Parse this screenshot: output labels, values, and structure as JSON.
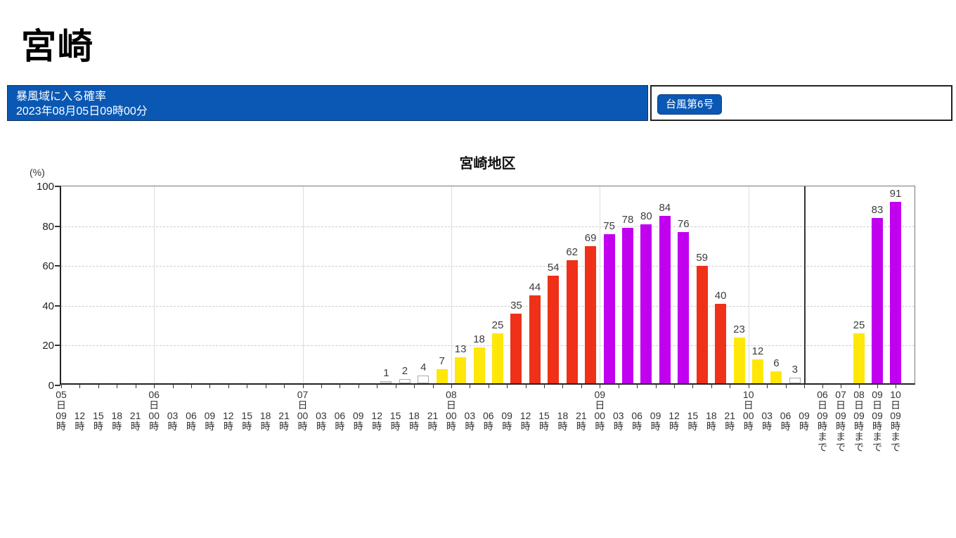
{
  "page": {
    "title": "宮崎"
  },
  "header": {
    "label": "暴風域に入る確率",
    "issued": "2023年08月05日09時00分",
    "typhoon_button": "台風第6号",
    "bg_color": "#0a58b4"
  },
  "chart_data": {
    "type": "bar",
    "title": "宮崎地区",
    "ylabel": "(%)",
    "ylim": [
      0,
      100
    ],
    "yticks": [
      0,
      20,
      40,
      60,
      80,
      100
    ],
    "grid": {
      "horizontal_dashed_at": [
        20,
        40,
        60,
        80
      ],
      "vertical_day_lines_at_tick_indices": [
        5,
        13,
        21,
        29,
        37
      ]
    },
    "legend_position": "none",
    "time_ticks": [
      "05日09時",
      "12時",
      "15時",
      "18時",
      "21時",
      "06日00時",
      "03時",
      "06時",
      "09時",
      "12時",
      "15時",
      "18時",
      "21時",
      "07日00時",
      "03時",
      "06時",
      "09時",
      "12時",
      "15時",
      "18時",
      "21時",
      "08日00時",
      "03時",
      "06時",
      "09時",
      "12時",
      "15時",
      "18時",
      "21時",
      "09日00時",
      "03時",
      "06時",
      "09時",
      "12時",
      "15時",
      "18時",
      "21時",
      "10日00時",
      "03時",
      "06時",
      "09時"
    ],
    "bin_values": [
      null,
      null,
      null,
      null,
      null,
      null,
      null,
      null,
      null,
      null,
      null,
      null,
      null,
      null,
      null,
      null,
      null,
      1,
      2,
      4,
      7,
      13,
      18,
      25,
      35,
      44,
      54,
      62,
      69,
      75,
      78,
      80,
      84,
      76,
      59,
      40,
      23,
      12,
      6,
      3
    ],
    "bin_note": "each value is the bar drawn between time_ticks[i] and time_ticks[i+1]",
    "cumulative_ticks": [
      "06日09時まで",
      "07日09時まで",
      "08日09時まで",
      "09日09時まで",
      "10日09時まで"
    ],
    "cumulative_values": [
      null,
      null,
      25,
      83,
      91
    ],
    "color_scale": [
      {
        "range": "0-4",
        "fill": "#ffffff",
        "border": "#aaaaaa"
      },
      {
        "range": "5-29",
        "fill": "#ffe70a",
        "border": "#ffe70a"
      },
      {
        "range": "30-69",
        "fill": "#ee3118",
        "border": "#ee3118"
      },
      {
        "range": "70-100",
        "fill": "#c000ee",
        "border": "#c000ee"
      }
    ]
  }
}
